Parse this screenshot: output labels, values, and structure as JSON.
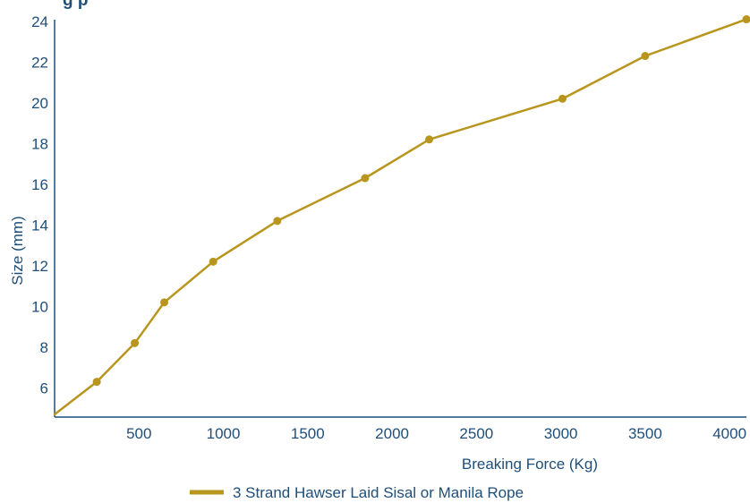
{
  "chart_data": {
    "type": "line",
    "title_fragment": "g        p",
    "xlabel": "Breaking Force (Kg)",
    "ylabel": "Size (mm)",
    "xlim": [
      0,
      4100
    ],
    "ylim": [
      4.7,
      24.3
    ],
    "x_ticks": [
      500,
      1000,
      1500,
      2000,
      2500,
      3000,
      3500,
      4000
    ],
    "y_ticks": [
      6,
      8,
      10,
      12,
      14,
      16,
      18,
      20,
      22,
      24
    ],
    "grid": false,
    "legend_position": "bottom-center",
    "series": [
      {
        "name": "3 Strand Hawser Laid Sisal or Manila Rope",
        "color": "#b8961e",
        "points": [
          {
            "x": 0,
            "y": 4.7,
            "marker": false
          },
          {
            "x": 250,
            "y": 6.3,
            "marker": true
          },
          {
            "x": 475,
            "y": 8.2,
            "marker": true
          },
          {
            "x": 650,
            "y": 10.2,
            "marker": true
          },
          {
            "x": 940,
            "y": 12.2,
            "marker": true
          },
          {
            "x": 1320,
            "y": 14.2,
            "marker": true
          },
          {
            "x": 1840,
            "y": 16.3,
            "marker": true
          },
          {
            "x": 2220,
            "y": 18.2,
            "marker": true
          },
          {
            "x": 3010,
            "y": 20.2,
            "marker": true
          },
          {
            "x": 3500,
            "y": 22.3,
            "marker": true
          },
          {
            "x": 4100,
            "y": 24.1,
            "marker": true
          }
        ]
      }
    ]
  }
}
